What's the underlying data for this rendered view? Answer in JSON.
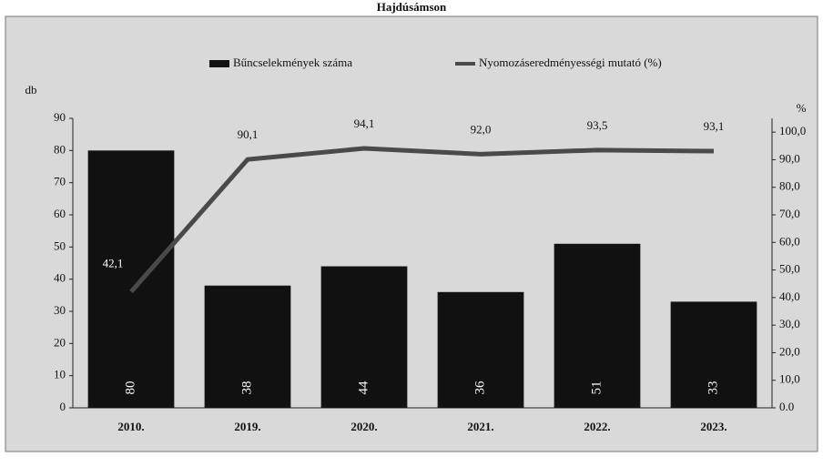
{
  "chart_data": {
    "type": "bar",
    "title": "Hajdúsámson",
    "y_label": "db",
    "y2_label": "%",
    "legend": "top",
    "categories": [
      "2010.",
      "2019.",
      "2020.",
      "2021.",
      "2022.",
      "2023."
    ],
    "series": [
      {
        "name": "Bűncselekmények száma",
        "type": "bar",
        "color": "#111111",
        "values": [
          80,
          38,
          44,
          36,
          51,
          33
        ]
      },
      {
        "name": "Nyomozáseredményességi mutató (%)",
        "type": "line",
        "axis": "y2",
        "color": "#4a4a4a",
        "values": [
          42.1,
          90.1,
          94.1,
          92.0,
          93.5,
          93.1
        ],
        "value_labels": [
          "42,1",
          "90,1",
          "94,1",
          "92,0",
          "93,5",
          "93,1"
        ]
      }
    ],
    "ylim": [
      0,
      90
    ],
    "yticks": [
      0,
      10,
      20,
      30,
      40,
      50,
      60,
      70,
      80,
      90
    ],
    "y2lim": [
      0,
      105
    ],
    "y2ticks": [
      {
        "value": 0,
        "label": "0.0"
      },
      {
        "value": 10,
        "label": "10,0"
      },
      {
        "value": 20,
        "label": "20,0"
      },
      {
        "value": 30,
        "label": "30,0"
      },
      {
        "value": 40,
        "label": "40,0"
      },
      {
        "value": 50,
        "label": "50,0"
      },
      {
        "value": 60,
        "label": "60,0"
      },
      {
        "value": 70,
        "label": "70,0"
      },
      {
        "value": 80,
        "label": "80,0"
      },
      {
        "value": 90,
        "label": "90,0"
      },
      {
        "value": 100,
        "label": "100,0"
      }
    ]
  }
}
